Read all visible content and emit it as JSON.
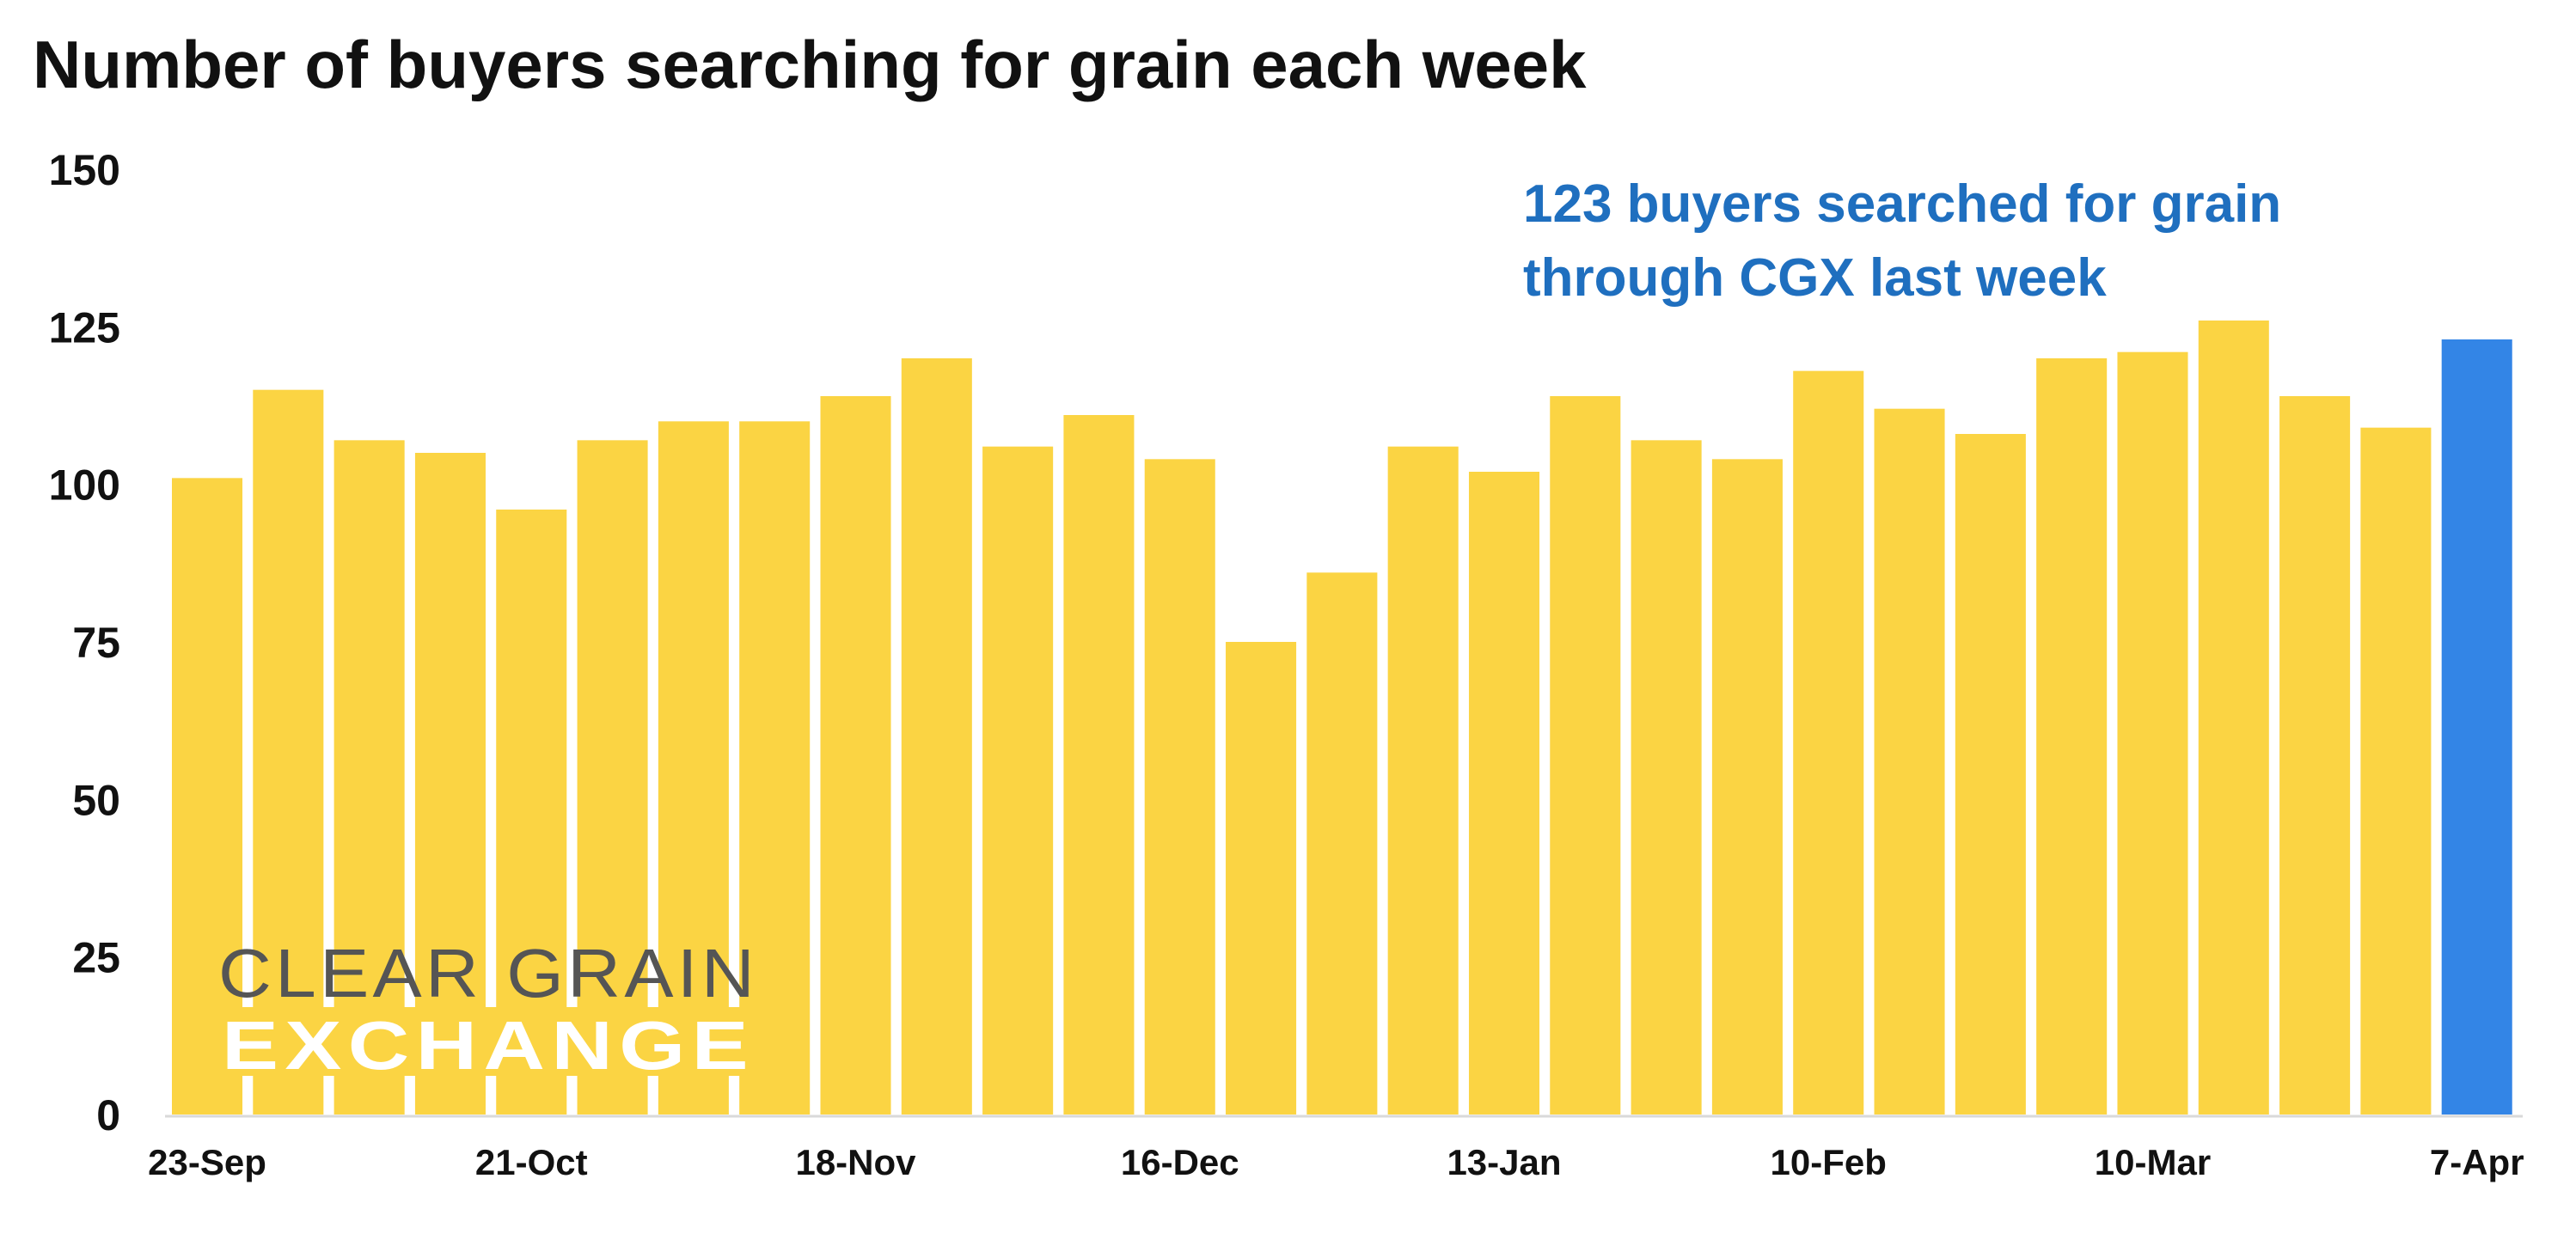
{
  "chart_data": {
    "type": "bar",
    "title": "Number of buyers searching for grain each week",
    "xlabel": "",
    "ylabel": "",
    "ylim": [
      0,
      150
    ],
    "yticks": [
      0,
      25,
      50,
      75,
      100,
      125,
      150
    ],
    "xtick_labels": [
      "23-Sep",
      "21-Oct",
      "18-Nov",
      "16-Dec",
      "13-Jan",
      "10-Feb",
      "10-Mar",
      "7-Apr"
    ],
    "xtick_every": 4,
    "values": [
      101,
      115,
      107,
      105,
      96,
      107,
      110,
      110,
      114,
      120,
      106,
      111,
      104,
      75,
      86,
      106,
      102,
      114,
      107,
      104,
      118,
      112,
      108,
      120,
      121,
      126,
      114,
      109,
      123
    ],
    "grid": false,
    "legend": "none",
    "colors": {
      "bar": "#fbd443",
      "highlight": "#3385e6",
      "annotation": "#1f6fbf"
    },
    "highlight_index": 28,
    "annotation": [
      "123 buyers searched for grain",
      "through CGX last week"
    ]
  },
  "logo": {
    "line1": "CLEAR GRAIN",
    "line2": "EXCHANGE"
  }
}
